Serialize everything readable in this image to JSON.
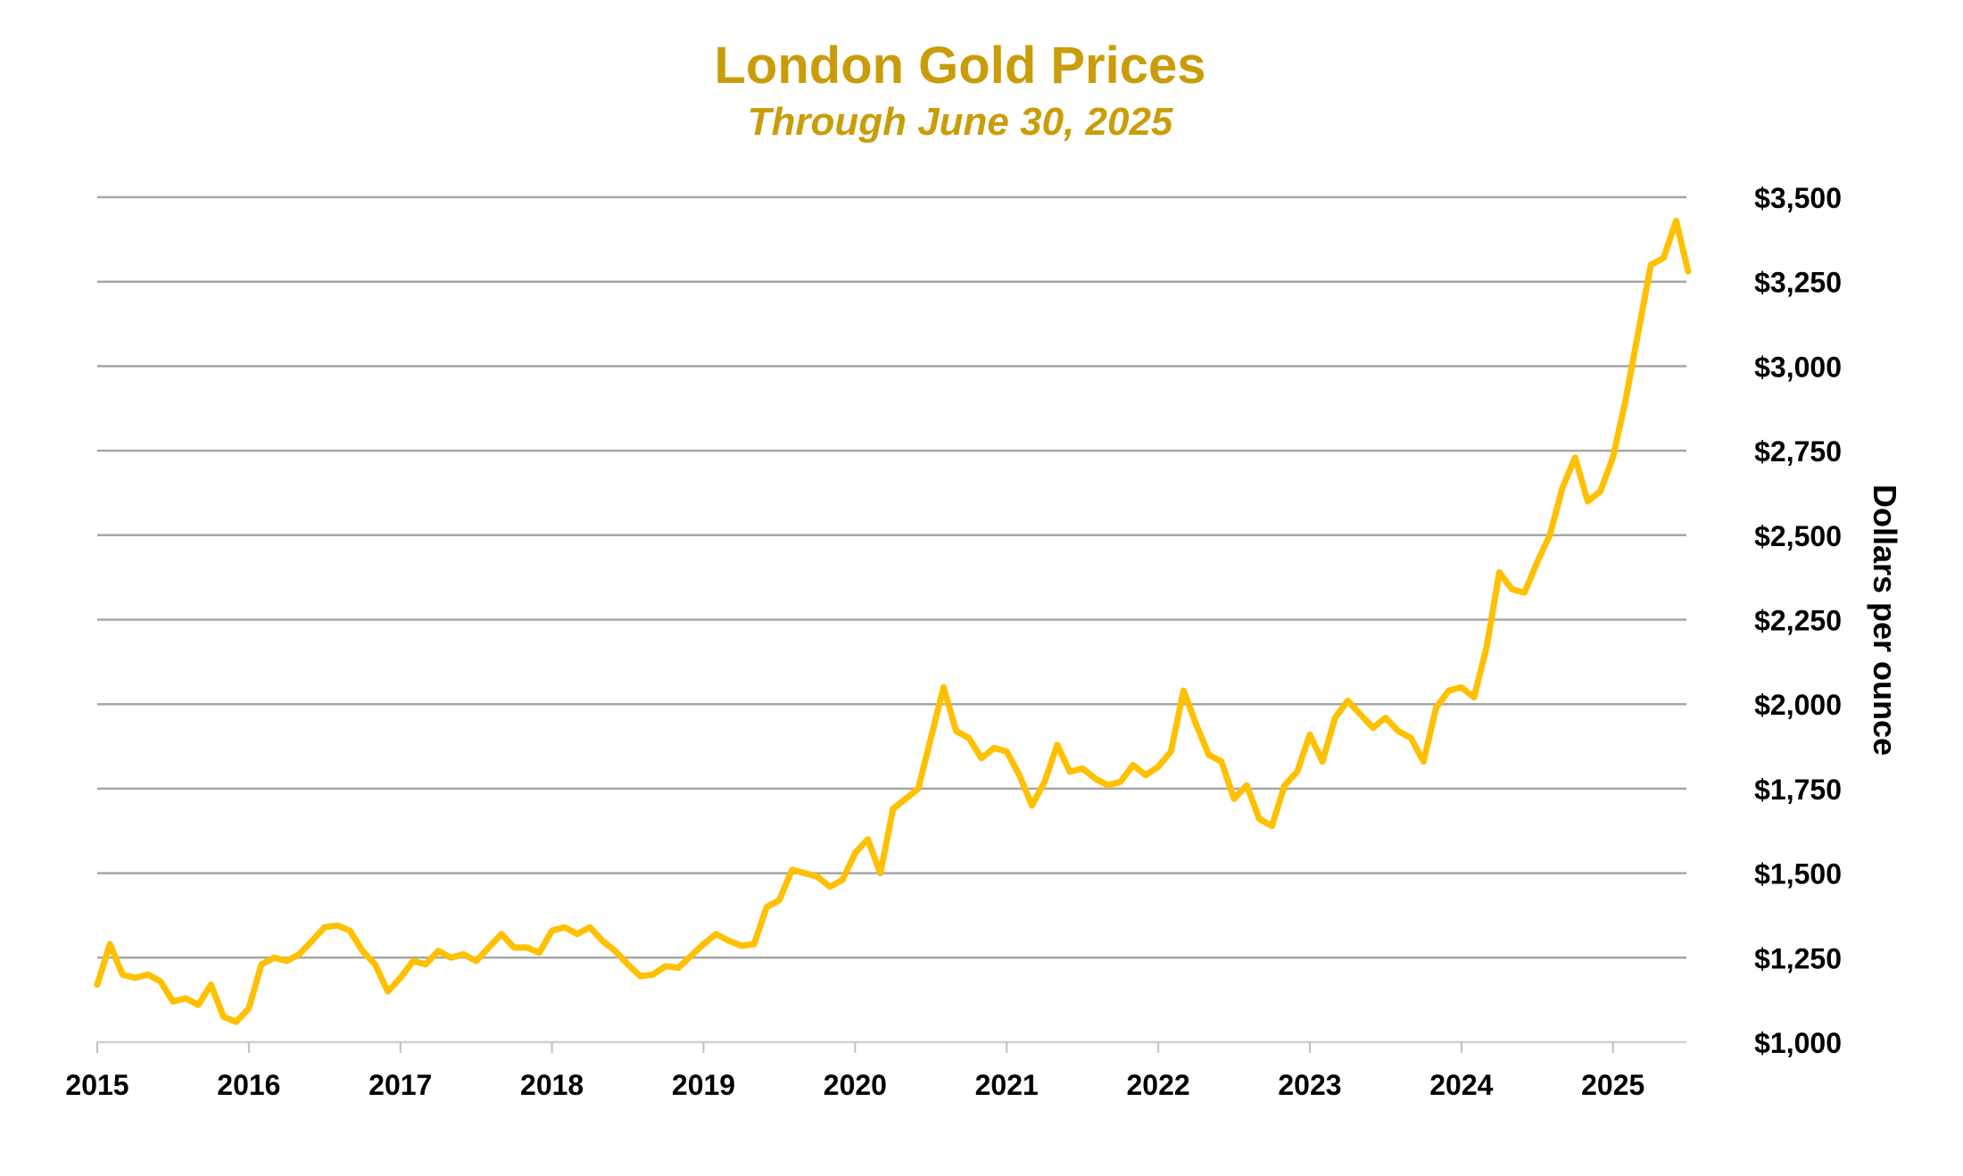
{
  "chart_data": {
    "type": "line",
    "title": "London Gold Prices",
    "subtitle": "Through June 30, 2025",
    "xlabel": "",
    "ylabel": "Dollars per ounce",
    "x_tick_labels": [
      "2015",
      "2016",
      "2017",
      "2018",
      "2019",
      "2020",
      "2021",
      "2022",
      "2023",
      "2024",
      "2025"
    ],
    "y_tick_labels": [
      "$1,000",
      "$1,250",
      "$1,500",
      "$1,750",
      "$2,000",
      "$2,250",
      "$2,500",
      "$2,750",
      "$3,000",
      "$3,250",
      "$3,500"
    ],
    "y_ticks": [
      1000,
      1250,
      1500,
      1750,
      2000,
      2250,
      2500,
      2750,
      3000,
      3250,
      3500
    ],
    "xlim": [
      "2015-01",
      "2025-06-30"
    ],
    "ylim": [
      1000,
      3500
    ],
    "grid": "horizontal",
    "y_axis_side": "right",
    "line_color": "#FFC000",
    "title_color": "#C99D0A",
    "grid_color": "#A6A6A6",
    "series": [
      {
        "x": [
          "2015-01",
          "2015-02",
          "2015-03",
          "2015-04",
          "2015-05",
          "2015-06",
          "2015-07",
          "2015-08",
          "2015-09",
          "2015-10",
          "2015-11",
          "2015-12",
          "2016-01",
          "2016-02",
          "2016-03",
          "2016-04",
          "2016-05",
          "2016-06",
          "2016-07",
          "2016-08",
          "2016-09",
          "2016-10",
          "2016-11",
          "2016-12",
          "2017-01",
          "2017-02",
          "2017-03",
          "2017-04",
          "2017-05",
          "2017-06",
          "2017-07",
          "2017-08",
          "2017-09",
          "2017-10",
          "2017-11",
          "2017-12",
          "2018-01",
          "2018-02",
          "2018-03",
          "2018-04",
          "2018-05",
          "2018-06",
          "2018-07",
          "2018-08",
          "2018-09",
          "2018-10",
          "2018-11",
          "2018-12",
          "2019-01",
          "2019-02",
          "2019-03",
          "2019-04",
          "2019-05",
          "2019-06",
          "2019-07",
          "2019-08",
          "2019-09",
          "2019-10",
          "2019-11",
          "2019-12",
          "2020-01",
          "2020-02",
          "2020-03",
          "2020-04",
          "2020-05",
          "2020-06",
          "2020-07",
          "2020-08",
          "2020-09",
          "2020-10",
          "2020-11",
          "2020-12",
          "2021-01",
          "2021-02",
          "2021-03",
          "2021-04",
          "2021-05",
          "2021-06",
          "2021-07",
          "2021-08",
          "2021-09",
          "2021-10",
          "2021-11",
          "2021-12",
          "2022-01",
          "2022-02",
          "2022-03",
          "2022-04",
          "2022-05",
          "2022-06",
          "2022-07",
          "2022-08",
          "2022-09",
          "2022-10",
          "2022-11",
          "2022-12",
          "2023-01",
          "2023-02",
          "2023-03",
          "2023-04",
          "2023-05",
          "2023-06",
          "2023-07",
          "2023-08",
          "2023-09",
          "2023-10",
          "2023-11",
          "2023-12",
          "2024-01",
          "2024-02",
          "2024-03",
          "2024-04",
          "2024-05",
          "2024-06",
          "2024-07",
          "2024-08",
          "2024-09",
          "2024-10",
          "2024-11",
          "2024-12",
          "2025-01",
          "2025-02",
          "2025-03",
          "2025-04",
          "2025-05",
          "2025-06",
          "2025-06-30"
        ],
        "y": [
          1170,
          1290,
          1200,
          1190,
          1200,
          1180,
          1120,
          1130,
          1110,
          1170,
          1075,
          1060,
          1100,
          1230,
          1250,
          1240,
          1260,
          1300,
          1340,
          1345,
          1330,
          1270,
          1230,
          1150,
          1190,
          1240,
          1230,
          1270,
          1250,
          1260,
          1240,
          1280,
          1320,
          1280,
          1280,
          1265,
          1330,
          1340,
          1320,
          1340,
          1300,
          1270,
          1230,
          1195,
          1200,
          1225,
          1220,
          1255,
          1290,
          1320,
          1300,
          1285,
          1290,
          1400,
          1420,
          1510,
          1500,
          1490,
          1460,
          1480,
          1560,
          1600,
          1500,
          1690,
          1720,
          1750,
          1900,
          2050,
          1920,
          1900,
          1840,
          1870,
          1860,
          1790,
          1700,
          1770,
          1880,
          1800,
          1810,
          1780,
          1760,
          1770,
          1820,
          1790,
          1815,
          1860,
          2040,
          1940,
          1850,
          1830,
          1720,
          1760,
          1660,
          1640,
          1760,
          1800,
          1910,
          1830,
          1960,
          2010,
          1970,
          1930,
          1960,
          1920,
          1900,
          1830,
          1990,
          2040,
          2050,
          2020,
          2170,
          2390,
          2340,
          2330,
          2420,
          2500,
          2640,
          2730,
          2600,
          2630,
          2730,
          2900,
          3100,
          3300,
          3320,
          3430,
          3280
        ]
      }
    ]
  }
}
